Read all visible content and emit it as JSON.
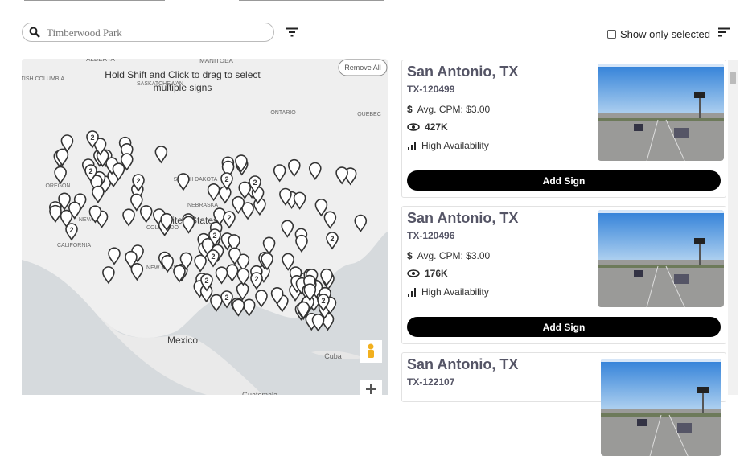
{
  "search": {
    "placeholder": "Timberwood Park"
  },
  "filter": {
    "show_only_selected": "Show only selected"
  },
  "map": {
    "hint": "Hold Shift and Click to drag to select multiple signs",
    "remove_all": "Remove All",
    "labels": [
      "ALBERTA",
      "MANITOBA",
      "BRITISH COLUMBIA",
      "SASKATCHEWAN",
      "ONTARIO",
      "QUEBEC",
      "OREGON",
      "NEVADA",
      "CALIFORNIA",
      "SOUTH DAKOTA",
      "NEBRASKA",
      "COLORADO",
      "United States",
      "NEW MEXICO",
      "Mexico",
      "Cuba",
      "Guatemala"
    ],
    "cluster_labels": [
      "2",
      "2",
      "2",
      "2",
      "2",
      "2",
      "2",
      "2",
      "2",
      "2",
      "2",
      "2",
      "2",
      "2"
    ]
  },
  "cards": [
    {
      "title": "San Antonio, TX",
      "id": "TX-120499",
      "cpm": "Avg. CPM: $3.00",
      "views": "427K",
      "availability": "High Availability",
      "button": "Add Sign"
    },
    {
      "title": "San Antonio, TX",
      "id": "TX-120496",
      "cpm": "Avg. CPM: $3.00",
      "views": "176K",
      "availability": "High Availability",
      "button": "Add Sign"
    },
    {
      "title": "San Antonio, TX",
      "id": "TX-122107"
    }
  ]
}
